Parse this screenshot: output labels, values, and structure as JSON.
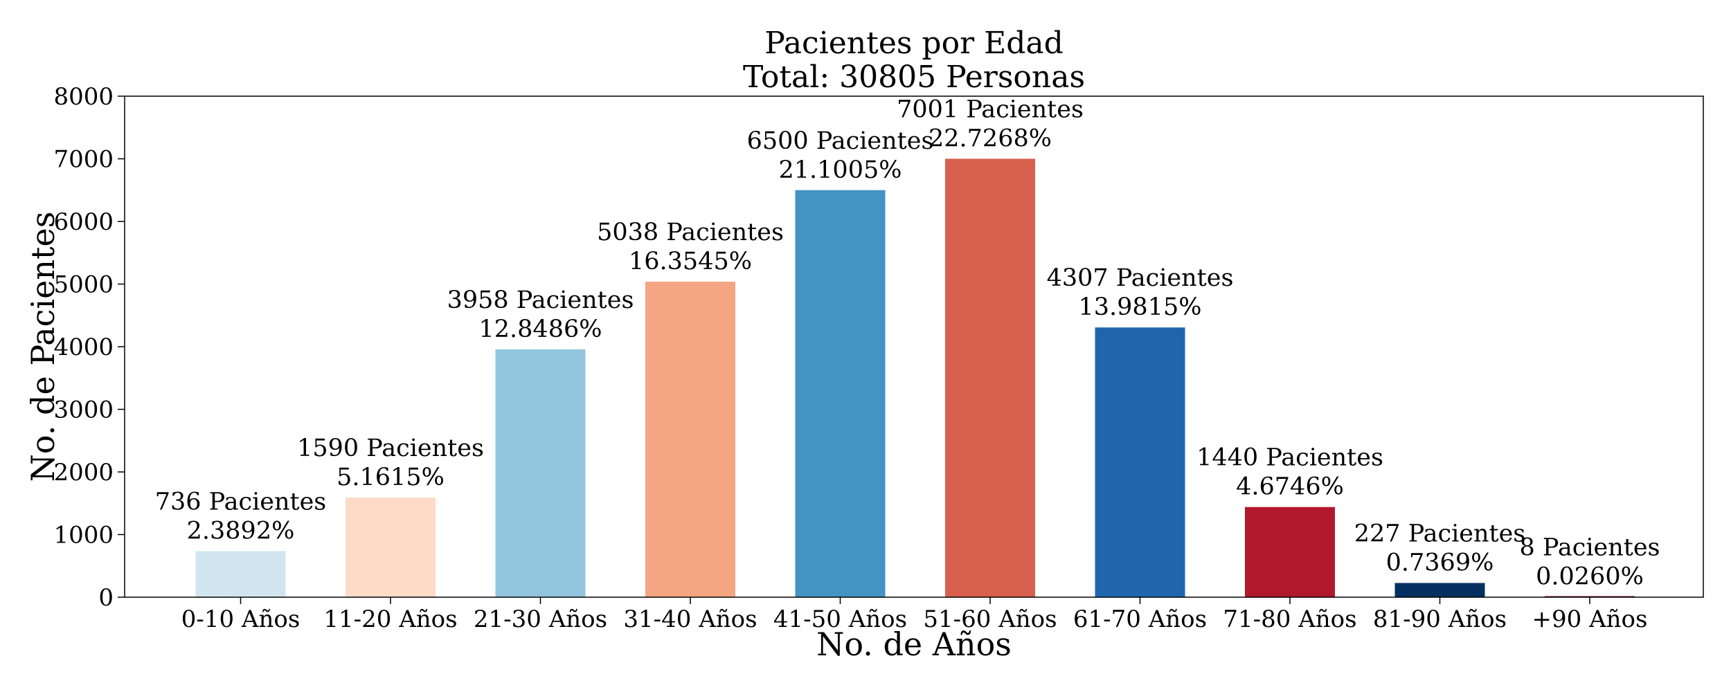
{
  "chart_data": {
    "type": "bar",
    "title": "Pacientes por Edad",
    "subtitle": "Total: 30805 Personas",
    "xlabel": "No. de Años",
    "ylabel": "No. de Pacientes",
    "ylim": [
      0,
      8000
    ],
    "yticks": [
      "0",
      "1000",
      "2000",
      "3000",
      "4000",
      "5000",
      "6000",
      "7000",
      "8000"
    ],
    "grid": false,
    "categories": [
      "0-10 Años",
      "11-20 Años",
      "21-30 Años",
      "31-40 Años",
      "41-50 Años",
      "51-60 Años",
      "61-70 Años",
      "71-80 Años",
      "81-90 Años",
      "+90 Años"
    ],
    "values": [
      736,
      1590,
      3958,
      5038,
      6500,
      7001,
      4307,
      1440,
      227,
      8
    ],
    "count_labels": [
      "736 Pacientes",
      "1590 Pacientes",
      "3958 Pacientes",
      "5038 Pacientes",
      "6500 Pacientes",
      "7001 Pacientes",
      "4307 Pacientes",
      "1440 Pacientes",
      "227 Pacientes",
      "8 Pacientes"
    ],
    "percent_labels": [
      "2.3892%",
      "5.1615%",
      "12.8486%",
      "16.3545%",
      "21.1005%",
      "22.7268%",
      "13.9815%",
      "4.6746%",
      "0.7369%",
      "0.0260%"
    ],
    "colors": [
      "#d1e5f0",
      "#fddbc7",
      "#92c5de",
      "#f4a582",
      "#4393c3",
      "#d6604d",
      "#2166ac",
      "#b2182b",
      "#053061",
      "#67001f"
    ]
  }
}
